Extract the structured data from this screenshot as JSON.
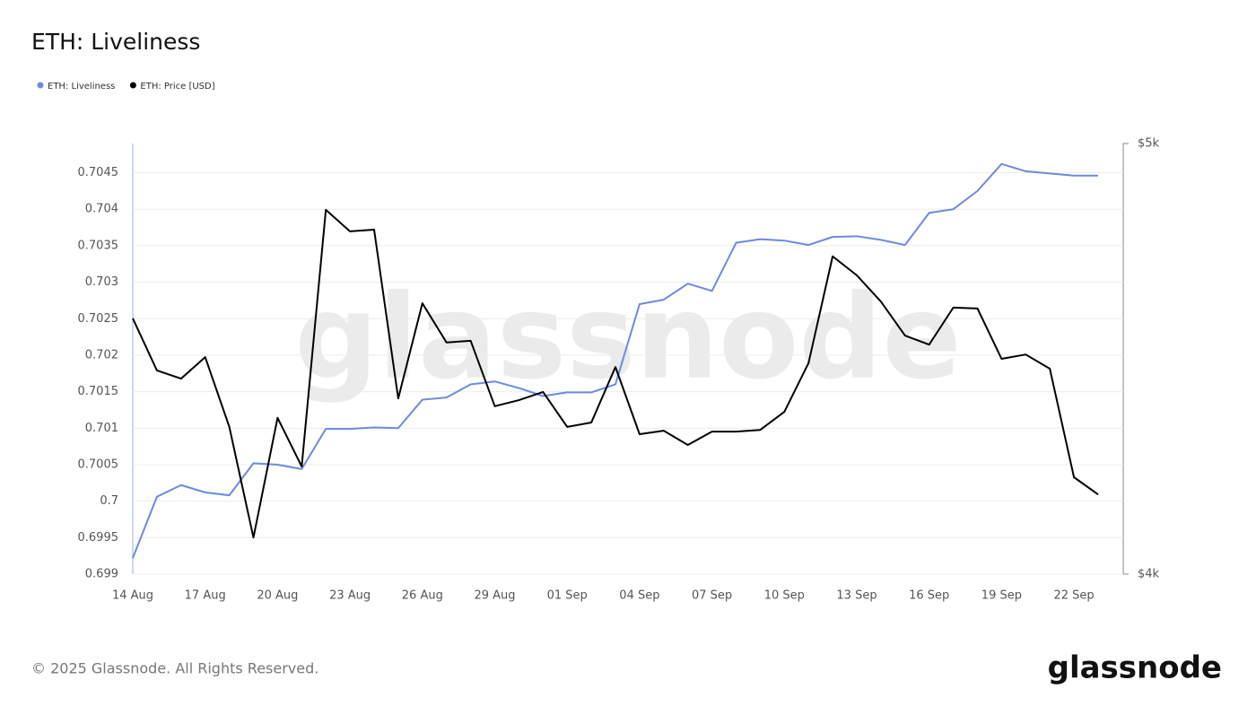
{
  "chart_data": {
    "type": "line",
    "title": "ETH: Liveliness",
    "watermark": "glassnode",
    "footer": "© 2025 Glassnode. All Rights Reserved.",
    "logo": "glassnode",
    "categories": [
      "14 Aug",
      null,
      null,
      "17 Aug",
      null,
      null,
      "20 Aug",
      null,
      null,
      "23 Aug",
      null,
      null,
      "26 Aug",
      null,
      null,
      "29 Aug",
      null,
      null,
      "01 Sep",
      null,
      null,
      "04 Sep",
      null,
      null,
      "07 Sep",
      null,
      null,
      "10 Sep",
      null,
      null,
      "13 Sep",
      null,
      null,
      "16 Sep",
      null,
      null,
      "19 Sep",
      null,
      null,
      "22 Sep",
      null
    ],
    "series": [
      {
        "name": "ETH: Liveliness",
        "color": "#6b8ae0",
        "axis": "y",
        "values": [
          0.69922,
          0.70006,
          0.70022,
          0.70012,
          0.70008,
          0.70052,
          0.7005,
          0.70044,
          0.70099,
          0.70099,
          0.70101,
          0.701,
          0.70139,
          0.70142,
          0.7016,
          0.70164,
          0.70155,
          0.70144,
          0.70149,
          0.70149,
          0.7016,
          0.7027,
          0.70276,
          0.70298,
          0.70288,
          0.70354,
          0.70359,
          0.70357,
          0.70351,
          0.70362,
          0.70363,
          0.70358,
          0.70351,
          0.70395,
          0.704,
          0.70425,
          0.70462,
          0.70452,
          0.70449,
          0.70446,
          0.70446
        ]
      },
      {
        "name": "ETH: Price [USD]",
        "color": "#000000",
        "axis": "y2",
        "values": [
          4594,
          4473,
          4454,
          4504,
          4342,
          4085,
          4363,
          4250,
          4846,
          4796,
          4800,
          4408,
          4629,
          4538,
          4542,
          4390,
          4404,
          4423,
          4342,
          4352,
          4481,
          4325,
          4333,
          4300,
          4331,
          4331,
          4335,
          4377,
          4490,
          4738,
          4694,
          4633,
          4554,
          4533,
          4619,
          4617,
          4500,
          4510,
          4477,
          4225,
          4185
        ]
      }
    ],
    "ylim": [
      0.699,
      0.7049
    ],
    "yticks": [
      0.699,
      0.6995,
      0.7,
      0.7005,
      0.701,
      0.7015,
      0.702,
      0.7025,
      0.703,
      0.7035,
      0.704,
      0.7045
    ],
    "y2lim": [
      4000,
      5000
    ],
    "y2ticks": [
      {
        "value": 4000,
        "label": "$4k"
      },
      {
        "value": 5000,
        "label": "$5k"
      }
    ],
    "grid": true
  }
}
